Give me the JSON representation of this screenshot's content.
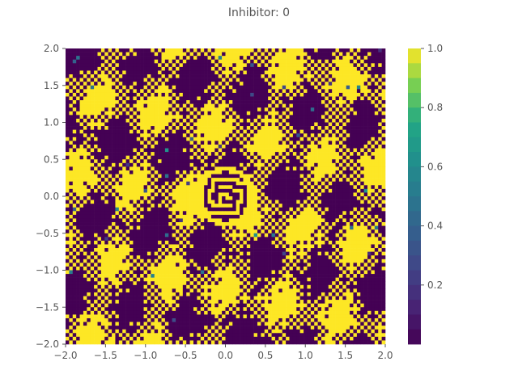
{
  "chart_data": {
    "type": "heatmap",
    "title": "Inhibitor: 0",
    "xlabel": "",
    "ylabel": "",
    "xlim": [
      -2.0,
      2.0
    ],
    "ylim": [
      -2.0,
      2.0
    ],
    "x_ticks": [
      "−2.0",
      "−1.5",
      "−1.0",
      "−0.5",
      "0.0",
      "0.5",
      "1.0",
      "1.5",
      "2.0"
    ],
    "y_ticks": [
      "2.0",
      "1.5",
      "1.0",
      "0.5",
      "0.0",
      "−0.5",
      "−1.0",
      "−1.5",
      "−2.0"
    ],
    "grid": "off",
    "grid_size": [
      90,
      80
    ],
    "pattern": "binary checkerboard field (values 0 or 1) with a concentric-ring bright disc near (0.0, 0.0) and a few scattered intermediate-value cells",
    "ring_center": [
      0.0,
      0.0
    ],
    "ring_radius": 0.4,
    "colorbar": {
      "colormap": "viridis",
      "range": [
        0.0,
        1.0
      ],
      "tick_labels": [
        "1.0",
        "0.8",
        "0.6",
        "0.4",
        "0.2"
      ],
      "tick_values": [
        1.0,
        0.8,
        0.6,
        0.4,
        0.2
      ]
    }
  }
}
